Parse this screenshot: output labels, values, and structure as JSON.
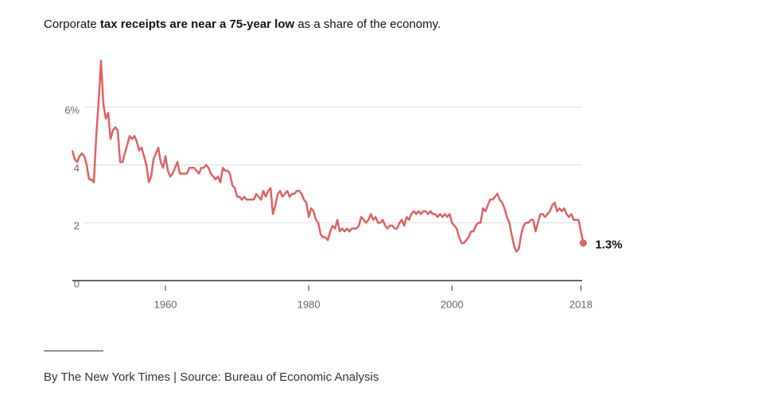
{
  "chart_data": {
    "type": "line",
    "title": [
      {
        "text": "Corporate ",
        "bold": false
      },
      {
        "text": "tax receipts are near a 75-year low",
        "bold": true
      },
      {
        "text": " as a share of the economy.",
        "bold": false
      }
    ],
    "source": "By The New York Times | Source: Bureau of Economic Analysis",
    "annotation": "1.3%",
    "color": "#e06262",
    "xlim": [
      1947,
      2018.4
    ],
    "xticks": [
      1960,
      1980,
      2000,
      2018
    ],
    "ylim": [
      0,
      8
    ],
    "yticks": [
      0,
      2,
      4,
      {
        "value": 6,
        "label": "6%"
      }
    ],
    "grid": true,
    "x": [
      1947,
      1947.33,
      1947.67,
      1948,
      1948.33,
      1948.67,
      1949,
      1949.33,
      1949.67,
      1950,
      1950.33,
      1950.67,
      1951,
      1951.33,
      1951.67,
      1952,
      1952.33,
      1952.67,
      1953,
      1953.33,
      1953.67,
      1954,
      1954.33,
      1954.67,
      1955,
      1955.33,
      1955.67,
      1956,
      1956.33,
      1956.67,
      1957,
      1957.33,
      1957.67,
      1958,
      1958.33,
      1958.67,
      1959,
      1959.33,
      1959.67,
      1960,
      1960.33,
      1960.67,
      1961,
      1961.33,
      1961.67,
      1962,
      1962.33,
      1962.67,
      1963,
      1963.33,
      1963.67,
      1964,
      1964.33,
      1964.67,
      1965,
      1965.33,
      1965.67,
      1966,
      1966.33,
      1966.67,
      1967,
      1967.33,
      1967.67,
      1968,
      1968.33,
      1968.67,
      1969,
      1969.33,
      1969.67,
      1970,
      1970.33,
      1970.67,
      1971,
      1971.33,
      1971.67,
      1972,
      1972.33,
      1972.67,
      1973,
      1973.33,
      1973.67,
      1974,
      1974.33,
      1974.67,
      1975,
      1975.33,
      1975.67,
      1976,
      1976.33,
      1976.67,
      1977,
      1977.33,
      1977.67,
      1978,
      1978.33,
      1978.67,
      1979,
      1979.33,
      1979.67,
      1980,
      1980.33,
      1980.67,
      1981,
      1981.33,
      1981.67,
      1982,
      1982.33,
      1982.67,
      1983,
      1983.33,
      1983.67,
      1984,
      1984.33,
      1984.67,
      1985,
      1985.33,
      1985.67,
      1986,
      1986.33,
      1986.67,
      1987,
      1987.33,
      1987.67,
      1988,
      1988.33,
      1988.67,
      1989,
      1989.33,
      1989.67,
      1990,
      1990.33,
      1990.67,
      1991,
      1991.33,
      1991.67,
      1992,
      1992.33,
      1992.67,
      1993,
      1993.33,
      1993.67,
      1994,
      1994.33,
      1994.67,
      1995,
      1995.33,
      1995.67,
      1996,
      1996.33,
      1996.67,
      1997,
      1997.33,
      1997.67,
      1998,
      1998.33,
      1998.67,
      1999,
      1999.33,
      1999.67,
      2000,
      2000.33,
      2000.67,
      2001,
      2001.33,
      2001.67,
      2002,
      2002.33,
      2002.67,
      2003,
      2003.33,
      2003.67,
      2004,
      2004.33,
      2004.67,
      2005,
      2005.33,
      2005.67,
      2006,
      2006.33,
      2006.67,
      2007,
      2007.33,
      2007.67,
      2008,
      2008.33,
      2008.67,
      2009,
      2009.33,
      2009.67,
      2010,
      2010.33,
      2010.67,
      2011,
      2011.33,
      2011.67,
      2012,
      2012.33,
      2012.67,
      2013,
      2013.33,
      2013.67,
      2014,
      2014.33,
      2014.67,
      2015,
      2015.33,
      2015.67,
      2016,
      2016.33,
      2016.67,
      2017,
      2017.33,
      2017.67,
      2018,
      2018.33
    ],
    "values": [
      4.5,
      4.2,
      4.1,
      4.3,
      4.4,
      4.3,
      4.0,
      3.5,
      3.5,
      3.4,
      5.0,
      6.2,
      7.6,
      6.1,
      5.6,
      5.8,
      4.9,
      5.2,
      5.3,
      5.2,
      4.1,
      4.1,
      4.4,
      4.7,
      5.0,
      4.9,
      5.0,
      4.8,
      4.5,
      4.6,
      4.3,
      4.0,
      3.4,
      3.6,
      4.2,
      4.4,
      4.6,
      4.1,
      3.9,
      4.3,
      3.8,
      3.6,
      3.7,
      3.9,
      4.1,
      3.7,
      3.7,
      3.7,
      3.7,
      3.9,
      3.9,
      3.9,
      3.8,
      3.7,
      3.9,
      3.9,
      4.0,
      3.9,
      3.7,
      3.6,
      3.5,
      3.6,
      3.4,
      3.9,
      3.8,
      3.8,
      3.7,
      3.3,
      3.2,
      2.9,
      2.9,
      2.8,
      2.9,
      2.8,
      2.8,
      2.8,
      2.8,
      3.0,
      2.9,
      2.8,
      3.1,
      2.9,
      3.1,
      3.2,
      2.3,
      2.6,
      3.0,
      3.1,
      2.9,
      3.0,
      3.1,
      2.9,
      3.0,
      3.0,
      3.1,
      3.1,
      3.0,
      2.8,
      2.7,
      2.2,
      2.5,
      2.4,
      2.1,
      2.0,
      1.6,
      1.5,
      1.5,
      1.4,
      1.7,
      1.9,
      1.8,
      2.1,
      1.7,
      1.8,
      1.7,
      1.8,
      1.7,
      1.8,
      1.8,
      1.8,
      1.9,
      2.2,
      2.1,
      2.0,
      2.1,
      2.3,
      2.1,
      2.2,
      2.0,
      2.0,
      2.1,
      1.9,
      1.8,
      1.9,
      1.9,
      1.8,
      1.8,
      2.0,
      2.1,
      1.9,
      2.2,
      2.1,
      2.3,
      2.4,
      2.3,
      2.4,
      2.3,
      2.4,
      2.4,
      2.3,
      2.4,
      2.3,
      2.3,
      2.2,
      2.3,
      2.2,
      2.3,
      2.2,
      2.3,
      2.0,
      1.9,
      1.8,
      1.5,
      1.3,
      1.3,
      1.4,
      1.5,
      1.7,
      1.7,
      1.9,
      2.0,
      2.0,
      2.5,
      2.4,
      2.6,
      2.8,
      2.8,
      2.9,
      3.0,
      2.8,
      2.7,
      2.5,
      2.2,
      2.0,
      1.6,
      1.2,
      1.0,
      1.1,
      1.6,
      1.9,
      2.0,
      2.0,
      2.1,
      2.1,
      1.7,
      2.0,
      2.3,
      2.3,
      2.2,
      2.3,
      2.4,
      2.6,
      2.7,
      2.4,
      2.5,
      2.4,
      2.5,
      2.3,
      2.2,
      2.3,
      2.1,
      2.1,
      2.1,
      1.7,
      1.3
    ]
  }
}
